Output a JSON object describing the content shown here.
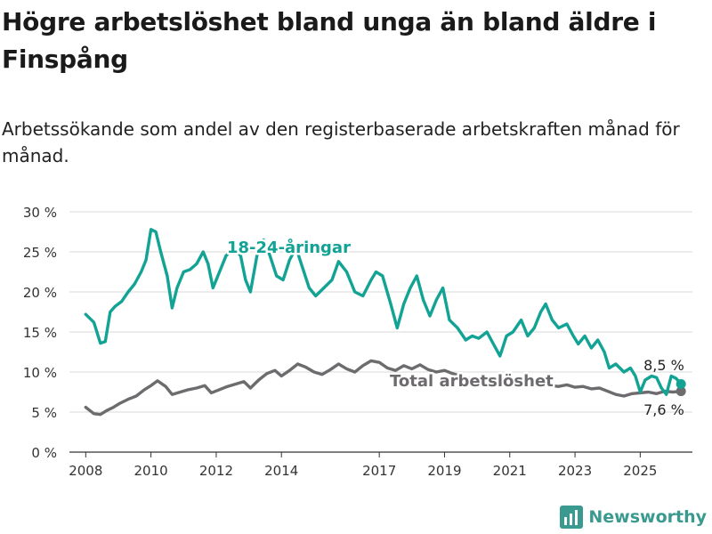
{
  "title": "Högre arbetslöshet bland unga än bland äldre i Finspång",
  "subtitle": "Arbetssökande som andel av den registerbaserade arbetskraften månad för månad.",
  "brand": "Newsworthy",
  "colors": {
    "youth": "#12a395",
    "total": "#6d6b6e",
    "grid": "#d8d8d8",
    "axis": "#333333"
  },
  "chart_data": {
    "type": "line",
    "x_unit": "year",
    "ylim": [
      0,
      30
    ],
    "y_ticks": [
      0,
      5,
      10,
      15,
      20,
      25,
      30
    ],
    "y_tick_labels": [
      "0 %",
      "5 %",
      "10 %",
      "15 %",
      "20 %",
      "25 %",
      "30 %"
    ],
    "x_ticks": [
      2008,
      2010,
      2012,
      2014,
      2017,
      2019,
      2021,
      2023,
      2025
    ],
    "x_tick_labels": [
      "2008",
      "2010",
      "2012",
      "2014",
      "2017",
      "2019",
      "2021",
      "2023",
      "2025"
    ],
    "grid": true,
    "series": [
      {
        "name": "18-24-åringar",
        "color_key": "youth",
        "end_label": "8,5 %",
        "points": [
          [
            2008.0,
            17.2
          ],
          [
            2008.25,
            16.2
          ],
          [
            2008.45,
            13.6
          ],
          [
            2008.6,
            13.8
          ],
          [
            2008.75,
            17.5
          ],
          [
            2008.9,
            18.2
          ],
          [
            2009.1,
            18.8
          ],
          [
            2009.3,
            20.0
          ],
          [
            2009.5,
            21.0
          ],
          [
            2009.7,
            22.5
          ],
          [
            2009.85,
            24.0
          ],
          [
            2010.0,
            27.8
          ],
          [
            2010.15,
            27.5
          ],
          [
            2010.3,
            25.0
          ],
          [
            2010.5,
            22.0
          ],
          [
            2010.65,
            18.0
          ],
          [
            2010.8,
            20.5
          ],
          [
            2011.0,
            22.5
          ],
          [
            2011.2,
            22.8
          ],
          [
            2011.4,
            23.5
          ],
          [
            2011.6,
            25.0
          ],
          [
            2011.75,
            23.5
          ],
          [
            2011.9,
            20.5
          ],
          [
            2012.05,
            22.0
          ],
          [
            2012.3,
            24.5
          ],
          [
            2012.55,
            25.5
          ],
          [
            2012.75,
            24.5
          ],
          [
            2012.9,
            21.5
          ],
          [
            2013.05,
            20.0
          ],
          [
            2013.25,
            24.5
          ],
          [
            2013.45,
            26.5
          ],
          [
            2013.65,
            24.5
          ],
          [
            2013.85,
            22.0
          ],
          [
            2014.05,
            21.5
          ],
          [
            2014.25,
            24.0
          ],
          [
            2014.45,
            25.5
          ],
          [
            2014.65,
            23.0
          ],
          [
            2014.85,
            20.5
          ],
          [
            2015.05,
            19.5
          ],
          [
            2015.3,
            20.5
          ],
          [
            2015.55,
            21.5
          ],
          [
            2015.75,
            23.8
          ],
          [
            2016.0,
            22.5
          ],
          [
            2016.25,
            20.0
          ],
          [
            2016.5,
            19.5
          ],
          [
            2016.75,
            21.5
          ],
          [
            2016.9,
            22.5
          ],
          [
            2017.1,
            22.0
          ],
          [
            2017.35,
            18.5
          ],
          [
            2017.55,
            15.5
          ],
          [
            2017.75,
            18.5
          ],
          [
            2017.95,
            20.5
          ],
          [
            2018.15,
            22.0
          ],
          [
            2018.35,
            19.0
          ],
          [
            2018.55,
            17.0
          ],
          [
            2018.75,
            19.0
          ],
          [
            2018.95,
            20.5
          ],
          [
            2019.15,
            16.5
          ],
          [
            2019.4,
            15.5
          ],
          [
            2019.65,
            14.0
          ],
          [
            2019.85,
            14.5
          ],
          [
            2020.05,
            14.2
          ],
          [
            2020.3,
            15.0
          ],
          [
            2020.5,
            13.5
          ],
          [
            2020.7,
            12.0
          ],
          [
            2020.9,
            14.5
          ],
          [
            2021.1,
            15.0
          ],
          [
            2021.35,
            16.5
          ],
          [
            2021.55,
            14.5
          ],
          [
            2021.75,
            15.5
          ],
          [
            2021.95,
            17.5
          ],
          [
            2022.1,
            18.5
          ],
          [
            2022.3,
            16.5
          ],
          [
            2022.5,
            15.5
          ],
          [
            2022.75,
            16.0
          ],
          [
            2022.95,
            14.5
          ],
          [
            2023.1,
            13.5
          ],
          [
            2023.3,
            14.5
          ],
          [
            2023.5,
            13.0
          ],
          [
            2023.7,
            14.0
          ],
          [
            2023.9,
            12.5
          ],
          [
            2024.05,
            10.5
          ],
          [
            2024.25,
            11.0
          ],
          [
            2024.5,
            10.0
          ],
          [
            2024.7,
            10.5
          ],
          [
            2024.85,
            9.5
          ],
          [
            2025.0,
            7.5
          ],
          [
            2025.15,
            9.0
          ],
          [
            2025.35,
            9.5
          ],
          [
            2025.5,
            9.3
          ],
          [
            2025.65,
            8.0
          ],
          [
            2025.8,
            7.2
          ],
          [
            2025.95,
            9.5
          ],
          [
            2026.1,
            9.2
          ],
          [
            2026.25,
            8.5
          ]
        ]
      },
      {
        "name": "Total arbetslöshet",
        "color_key": "total",
        "end_label": "7,6 %",
        "points": [
          [
            2008.0,
            5.6
          ],
          [
            2008.25,
            4.8
          ],
          [
            2008.45,
            4.7
          ],
          [
            2008.65,
            5.2
          ],
          [
            2008.85,
            5.6
          ],
          [
            2009.05,
            6.1
          ],
          [
            2009.3,
            6.6
          ],
          [
            2009.55,
            7.0
          ],
          [
            2009.8,
            7.8
          ],
          [
            2010.0,
            8.3
          ],
          [
            2010.2,
            8.9
          ],
          [
            2010.45,
            8.2
          ],
          [
            2010.65,
            7.2
          ],
          [
            2010.9,
            7.5
          ],
          [
            2011.15,
            7.8
          ],
          [
            2011.4,
            8.0
          ],
          [
            2011.65,
            8.3
          ],
          [
            2011.85,
            7.4
          ],
          [
            2012.1,
            7.8
          ],
          [
            2012.35,
            8.2
          ],
          [
            2012.6,
            8.5
          ],
          [
            2012.85,
            8.8
          ],
          [
            2013.05,
            8.0
          ],
          [
            2013.3,
            9.0
          ],
          [
            2013.55,
            9.8
          ],
          [
            2013.8,
            10.2
          ],
          [
            2014.0,
            9.5
          ],
          [
            2014.25,
            10.2
          ],
          [
            2014.5,
            11.0
          ],
          [
            2014.75,
            10.6
          ],
          [
            2015.0,
            10.0
          ],
          [
            2015.25,
            9.7
          ],
          [
            2015.5,
            10.3
          ],
          [
            2015.75,
            11.0
          ],
          [
            2016.0,
            10.4
          ],
          [
            2016.25,
            10.0
          ],
          [
            2016.5,
            10.8
          ],
          [
            2016.75,
            11.4
          ],
          [
            2017.0,
            11.2
          ],
          [
            2017.25,
            10.5
          ],
          [
            2017.5,
            10.2
          ],
          [
            2017.75,
            10.8
          ],
          [
            2018.0,
            10.4
          ],
          [
            2018.25,
            10.9
          ],
          [
            2018.5,
            10.3
          ],
          [
            2018.75,
            10.0
          ],
          [
            2019.0,
            10.2
          ],
          [
            2019.25,
            9.8
          ],
          [
            2019.5,
            9.5
          ],
          [
            2019.75,
            9.2
          ],
          [
            2020.0,
            9.0
          ],
          [
            2020.25,
            8.8
          ],
          [
            2020.5,
            8.9
          ],
          [
            2020.75,
            8.6
          ],
          [
            2021.0,
            8.8
          ],
          [
            2021.25,
            8.5
          ],
          [
            2021.5,
            8.6
          ],
          [
            2021.75,
            8.4
          ],
          [
            2022.0,
            8.5
          ],
          [
            2022.25,
            8.3
          ],
          [
            2022.5,
            8.2
          ],
          [
            2022.75,
            8.4
          ],
          [
            2023.0,
            8.1
          ],
          [
            2023.25,
            8.2
          ],
          [
            2023.5,
            7.9
          ],
          [
            2023.75,
            8.0
          ],
          [
            2024.0,
            7.6
          ],
          [
            2024.25,
            7.2
          ],
          [
            2024.5,
            7.0
          ],
          [
            2024.75,
            7.3
          ],
          [
            2025.0,
            7.4
          ],
          [
            2025.25,
            7.5
          ],
          [
            2025.5,
            7.3
          ],
          [
            2025.75,
            7.6
          ],
          [
            2026.0,
            7.5
          ],
          [
            2026.25,
            7.6
          ]
        ]
      }
    ]
  }
}
